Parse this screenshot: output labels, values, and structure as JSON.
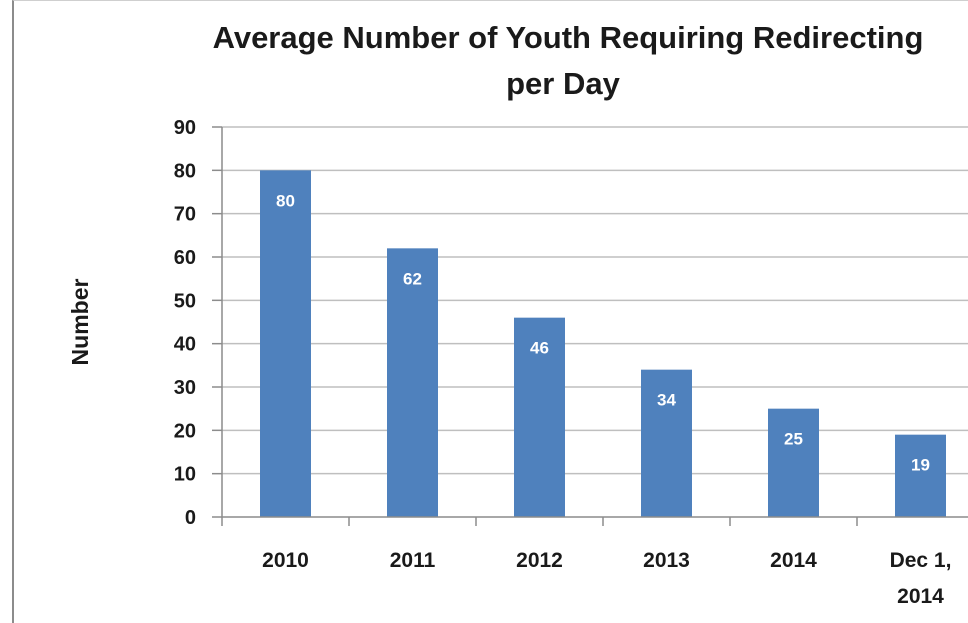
{
  "chart_data": {
    "type": "bar",
    "title_lines": [
      "Average Number of Youth Requiring Redirecting",
      "per Day"
    ],
    "ylabel": "Number",
    "xlabel": "",
    "categories": [
      [
        "2010"
      ],
      [
        "2011"
      ],
      [
        "2012"
      ],
      [
        "2013"
      ],
      [
        "2014"
      ],
      [
        "Dec 1,",
        "2014"
      ]
    ],
    "values": [
      80,
      62,
      46,
      34,
      25,
      19
    ],
    "data_labels": [
      "80",
      "62",
      "46",
      "34",
      "25",
      "19"
    ],
    "ylim": [
      0,
      90
    ],
    "yticks": [
      "0",
      "10",
      "20",
      "30",
      "40",
      "50",
      "60",
      "70",
      "80",
      "90"
    ],
    "grid": true,
    "bar_color": "#4f81bd",
    "gridline_color": "#bfbfbf"
  }
}
